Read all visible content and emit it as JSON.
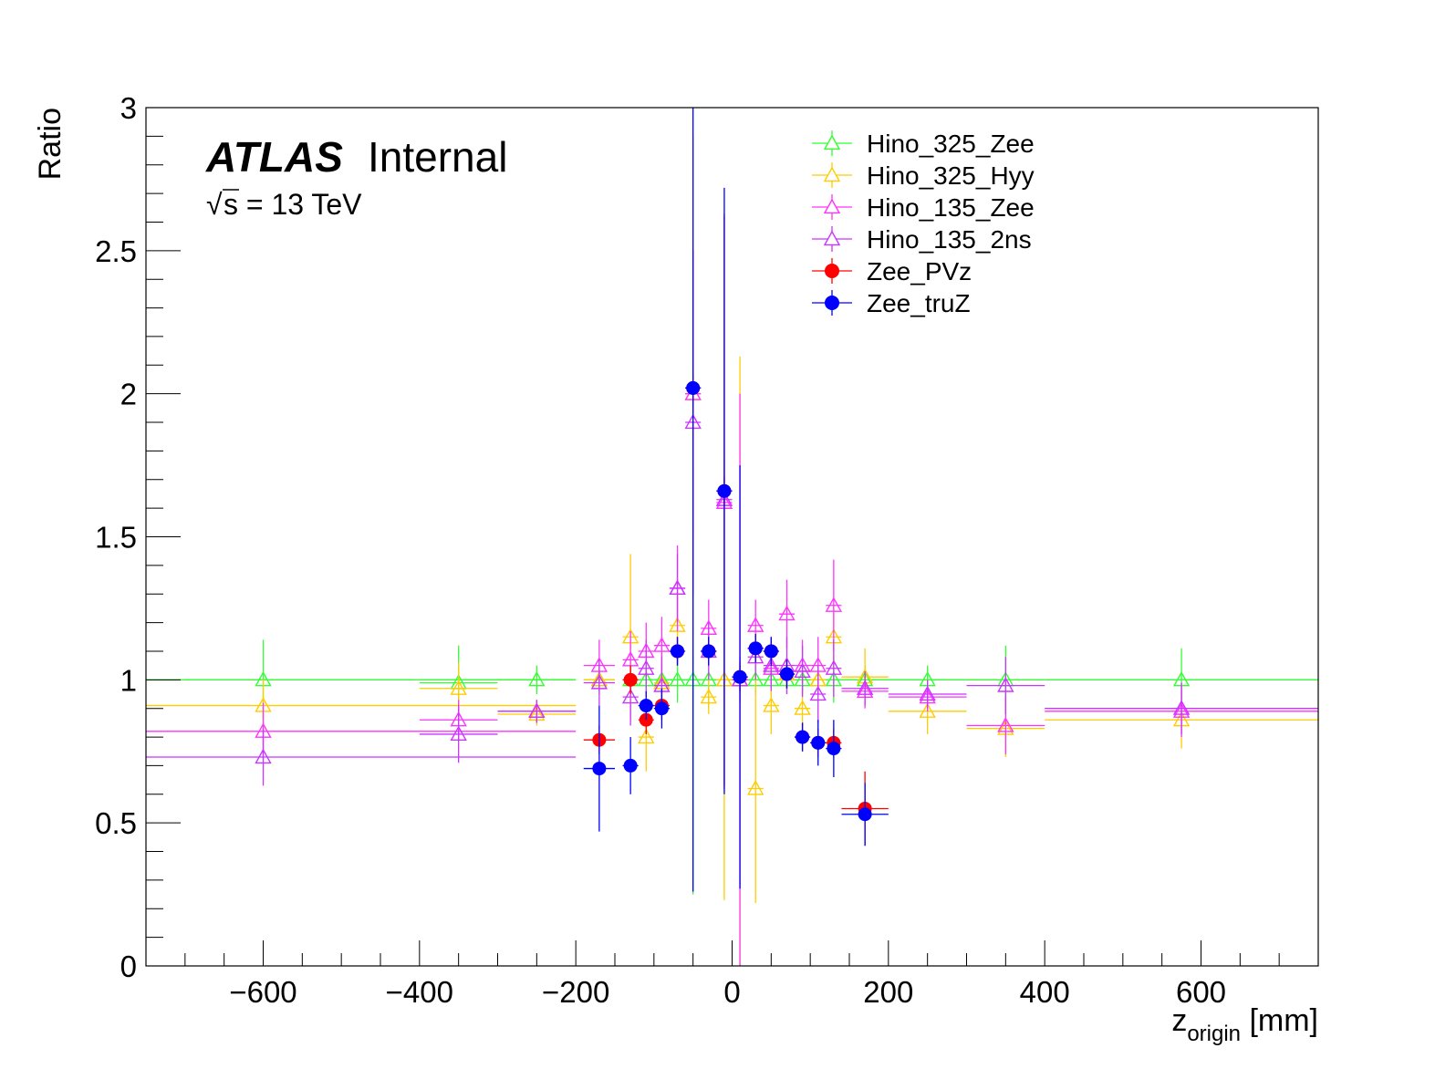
{
  "chart_data": {
    "type": "scatter",
    "title": "",
    "xlabel_main": "z",
    "xlabel_sub": "origin",
    "xlabel_unit": " [mm]",
    "ylabel": "Ratio",
    "xlim": [
      -750,
      750
    ],
    "ylim": [
      0,
      3
    ],
    "x_ticks": [
      -600,
      -400,
      -200,
      0,
      200,
      400,
      600
    ],
    "x_tick_labels": [
      "−600",
      "−400",
      "−200",
      "0",
      "200",
      "400",
      "600"
    ],
    "y_ticks": [
      0,
      0.5,
      1,
      1.5,
      2,
      2.5,
      3
    ],
    "y_tick_labels": [
      "0",
      "0.5",
      "1",
      "1.5",
      "2",
      "2.5",
      "3"
    ],
    "legend_position": "top-right",
    "grid": false,
    "series": [
      {
        "name": "Hino_325_Zee",
        "color": "#33ff33",
        "marker": "open-triangle",
        "points": [
          {
            "x": -600,
            "y": 1.0,
            "xerr": 400,
            "yerr": 0.14
          },
          {
            "x": -350,
            "y": 0.99,
            "xerr": 50,
            "yerr": 0.13
          },
          {
            "x": -250,
            "y": 1.0,
            "xerr": 50,
            "yerr": 0.05
          },
          {
            "x": -170,
            "y": 1.0,
            "xerr": 20,
            "yerr": 0.05
          },
          {
            "x": -130,
            "y": 1.0,
            "xerr": 10,
            "yerr": 0.05
          },
          {
            "x": -110,
            "y": 1.0,
            "xerr": 10,
            "yerr": 0.05
          },
          {
            "x": -90,
            "y": 1.0,
            "xerr": 10,
            "yerr": 0.05
          },
          {
            "x": -70,
            "y": 1.0,
            "xerr": 10,
            "yerr": 0.08
          },
          {
            "x": -50,
            "y": 1.0,
            "xerr": 10,
            "yerr": 0.75
          },
          {
            "x": -30,
            "y": 1.0,
            "xerr": 10,
            "yerr": 0.1
          },
          {
            "x": -10,
            "y": 1.0,
            "xerr": 10,
            "yerr": 0.05
          },
          {
            "x": 10,
            "y": 1.0,
            "xerr": 10,
            "yerr": 0.05
          },
          {
            "x": 30,
            "y": 1.0,
            "xerr": 10,
            "yerr": 0.05
          },
          {
            "x": 50,
            "y": 1.0,
            "xerr": 10,
            "yerr": 0.05
          },
          {
            "x": 70,
            "y": 1.0,
            "xerr": 10,
            "yerr": 0.05
          },
          {
            "x": 90,
            "y": 1.0,
            "xerr": 10,
            "yerr": 0.05
          },
          {
            "x": 110,
            "y": 1.0,
            "xerr": 10,
            "yerr": 0.05
          },
          {
            "x": 130,
            "y": 1.0,
            "xerr": 10,
            "yerr": 0.08
          },
          {
            "x": 170,
            "y": 1.0,
            "xerr": 30,
            "yerr": 0.05
          },
          {
            "x": 250,
            "y": 1.0,
            "xerr": 50,
            "yerr": 0.05
          },
          {
            "x": 350,
            "y": 1.0,
            "xerr": 50,
            "yerr": 0.12
          },
          {
            "x": 575,
            "y": 1.0,
            "xerr": 175,
            "yerr": 0.11
          }
        ]
      },
      {
        "name": "Hino_325_Hyy",
        "color": "#ffcc00",
        "marker": "open-triangle",
        "points": [
          {
            "x": -600,
            "y": 0.91,
            "xerr": 400,
            "yerr": 0.09
          },
          {
            "x": -350,
            "y": 0.97,
            "xerr": 50,
            "yerr": 0.09
          },
          {
            "x": -250,
            "y": 0.88,
            "xerr": 50,
            "yerr": 0.04
          },
          {
            "x": -170,
            "y": 1.0,
            "xerr": 20,
            "yerr": 0.05
          },
          {
            "x": -130,
            "y": 1.15,
            "xerr": 10,
            "yerr": 0.29
          },
          {
            "x": -110,
            "y": 0.8,
            "xerr": 10,
            "yerr": 0.12
          },
          {
            "x": -90,
            "y": 0.99,
            "xerr": 10,
            "yerr": 0.1
          },
          {
            "x": -70,
            "y": 1.19,
            "xerr": 10,
            "yerr": 0.1
          },
          {
            "x": -50,
            "y": 2.0,
            "xerr": 10,
            "yerr": 0.9
          },
          {
            "x": -30,
            "y": 0.94,
            "xerr": 10,
            "yerr": 0.06
          },
          {
            "x": -10,
            "y": 1.0,
            "xerr": 10,
            "yerr": 0.77
          },
          {
            "x": 10,
            "y": 1.0,
            "xerr": 10,
            "yerr": 1.13
          },
          {
            "x": 30,
            "y": 0.62,
            "xerr": 10,
            "yerr": 0.4
          },
          {
            "x": 50,
            "y": 0.91,
            "xerr": 10,
            "yerr": 0.1
          },
          {
            "x": 70,
            "y": 1.02,
            "xerr": 10,
            "yerr": 0.05
          },
          {
            "x": 90,
            "y": 0.9,
            "xerr": 10,
            "yerr": 0.06
          },
          {
            "x": 110,
            "y": 1.0,
            "xerr": 10,
            "yerr": 0.05
          },
          {
            "x": 130,
            "y": 1.15,
            "xerr": 10,
            "yerr": 0.11
          },
          {
            "x": 170,
            "y": 1.01,
            "xerr": 30,
            "yerr": 0.1
          },
          {
            "x": 250,
            "y": 0.89,
            "xerr": 50,
            "yerr": 0.08
          },
          {
            "x": 350,
            "y": 0.83,
            "xerr": 50,
            "yerr": 0.1
          },
          {
            "x": 575,
            "y": 0.86,
            "xerr": 175,
            "yerr": 0.1
          }
        ]
      },
      {
        "name": "Hino_135_Zee",
        "color": "#ff33ff",
        "marker": "open-triangle",
        "points": [
          {
            "x": -600,
            "y": 0.82,
            "xerr": 400,
            "yerr": 0.1
          },
          {
            "x": -350,
            "y": 0.86,
            "xerr": 50,
            "yerr": 0.07
          },
          {
            "x": -250,
            "y": 0.89,
            "xerr": 50,
            "yerr": 0.04
          },
          {
            "x": -170,
            "y": 1.05,
            "xerr": 20,
            "yerr": 0.09
          },
          {
            "x": -130,
            "y": 1.07,
            "xerr": 10,
            "yerr": 0.1
          },
          {
            "x": -110,
            "y": 1.1,
            "xerr": 10,
            "yerr": 0.1
          },
          {
            "x": -90,
            "y": 1.12,
            "xerr": 10,
            "yerr": 0.1
          },
          {
            "x": -70,
            "y": 1.32,
            "xerr": 10,
            "yerr": 0.15
          },
          {
            "x": -50,
            "y": 2.0,
            "xerr": 10,
            "yerr": 0.5
          },
          {
            "x": -30,
            "y": 1.18,
            "xerr": 10,
            "yerr": 0.1
          },
          {
            "x": -10,
            "y": 1.62,
            "xerr": 10,
            "yerr": 1.0
          },
          {
            "x": 10,
            "y": 1.0,
            "xerr": 10,
            "yerr": 1.0
          },
          {
            "x": 30,
            "y": 1.19,
            "xerr": 10,
            "yerr": 0.09
          },
          {
            "x": 50,
            "y": 1.04,
            "xerr": 10,
            "yerr": 0.08
          },
          {
            "x": 70,
            "y": 1.23,
            "xerr": 10,
            "yerr": 0.12
          },
          {
            "x": 90,
            "y": 1.05,
            "xerr": 10,
            "yerr": 0.09
          },
          {
            "x": 110,
            "y": 1.05,
            "xerr": 10,
            "yerr": 0.1
          },
          {
            "x": 130,
            "y": 1.26,
            "xerr": 10,
            "yerr": 0.16
          },
          {
            "x": 170,
            "y": 0.96,
            "xerr": 30,
            "yerr": 0.06
          },
          {
            "x": 250,
            "y": 0.94,
            "xerr": 50,
            "yerr": 0.05
          },
          {
            "x": 350,
            "y": 0.84,
            "xerr": 50,
            "yerr": 0.1
          },
          {
            "x": 575,
            "y": 0.89,
            "xerr": 175,
            "yerr": 0.09
          }
        ]
      },
      {
        "name": "Hino_135_2ns",
        "color": "#cc33ff",
        "marker": "open-triangle",
        "points": [
          {
            "x": -600,
            "y": 0.73,
            "xerr": 400,
            "yerr": 0.1
          },
          {
            "x": -350,
            "y": 0.81,
            "xerr": 50,
            "yerr": 0.1
          },
          {
            "x": -250,
            "y": 0.89,
            "xerr": 50,
            "yerr": 0.04
          },
          {
            "x": -170,
            "y": 0.99,
            "xerr": 20,
            "yerr": 0.08
          },
          {
            "x": -130,
            "y": 0.94,
            "xerr": 10,
            "yerr": 0.1
          },
          {
            "x": -110,
            "y": 1.04,
            "xerr": 10,
            "yerr": 0.1
          },
          {
            "x": -90,
            "y": 0.98,
            "xerr": 10,
            "yerr": 0.1
          },
          {
            "x": -70,
            "y": 1.32,
            "xerr": 10,
            "yerr": 0.12
          },
          {
            "x": -50,
            "y": 1.9,
            "xerr": 10,
            "yerr": 0.6
          },
          {
            "x": -30,
            "y": 1.1,
            "xerr": 10,
            "yerr": 0.1
          },
          {
            "x": -10,
            "y": 1.63,
            "xerr": 10,
            "yerr": 1.0
          },
          {
            "x": 10,
            "y": 1.0,
            "xerr": 10,
            "yerr": 0.08
          },
          {
            "x": 30,
            "y": 1.08,
            "xerr": 10,
            "yerr": 0.08
          },
          {
            "x": 50,
            "y": 1.05,
            "xerr": 10,
            "yerr": 0.08
          },
          {
            "x": 70,
            "y": 1.05,
            "xerr": 10,
            "yerr": 0.1
          },
          {
            "x": 90,
            "y": 1.03,
            "xerr": 10,
            "yerr": 0.09
          },
          {
            "x": 110,
            "y": 0.95,
            "xerr": 10,
            "yerr": 0.1
          },
          {
            "x": 130,
            "y": 1.04,
            "xerr": 10,
            "yerr": 0.1
          },
          {
            "x": 170,
            "y": 0.97,
            "xerr": 30,
            "yerr": 0.06
          },
          {
            "x": 250,
            "y": 0.95,
            "xerr": 50,
            "yerr": 0.05
          },
          {
            "x": 350,
            "y": 0.98,
            "xerr": 50,
            "yerr": 0.1
          },
          {
            "x": 575,
            "y": 0.9,
            "xerr": 175,
            "yerr": 0.09
          }
        ]
      },
      {
        "name": "Zee_PVz",
        "color": "#ff0000",
        "marker": "filled-circle",
        "points": [
          {
            "x": -170,
            "y": 0.79,
            "xerr": 20,
            "yerr": 0.05
          },
          {
            "x": -130,
            "y": 1.0,
            "xerr": 10,
            "yerr": 0.05
          },
          {
            "x": -110,
            "y": 0.86,
            "xerr": 10,
            "yerr": 0.05
          },
          {
            "x": -90,
            "y": 0.91,
            "xerr": 10,
            "yerr": 0.05
          },
          {
            "x": -70,
            "y": 1.1,
            "xerr": 10,
            "yerr": 0.05
          },
          {
            "x": -50,
            "y": 2.02,
            "xerr": 10,
            "yerr": 0.05
          },
          {
            "x": -30,
            "y": 1.1,
            "xerr": 10,
            "yerr": 0.05
          },
          {
            "x": -10,
            "y": 1.66,
            "xerr": 10,
            "yerr": 0.05
          },
          {
            "x": 10,
            "y": 1.01,
            "xerr": 10,
            "yerr": 0.05
          },
          {
            "x": 30,
            "y": 1.11,
            "xerr": 10,
            "yerr": 0.05
          },
          {
            "x": 50,
            "y": 1.1,
            "xerr": 10,
            "yerr": 0.05
          },
          {
            "x": 70,
            "y": 1.02,
            "xerr": 10,
            "yerr": 0.05
          },
          {
            "x": 90,
            "y": 0.8,
            "xerr": 10,
            "yerr": 0.05
          },
          {
            "x": 110,
            "y": 0.78,
            "xerr": 10,
            "yerr": 0.05
          },
          {
            "x": 130,
            "y": 0.78,
            "xerr": 10,
            "yerr": 0.05
          },
          {
            "x": 170,
            "y": 0.55,
            "xerr": 30,
            "yerr": 0.13
          }
        ]
      },
      {
        "name": "Zee_truZ",
        "color": "#0000ff",
        "marker": "filled-circle",
        "points": [
          {
            "x": -170,
            "y": 0.69,
            "xerr": 20,
            "yerr": 0.22
          },
          {
            "x": -130,
            "y": 0.7,
            "xerr": 10,
            "yerr": 0.1
          },
          {
            "x": -110,
            "y": 0.91,
            "xerr": 10,
            "yerr": 0.05
          },
          {
            "x": -90,
            "y": 0.9,
            "xerr": 10,
            "yerr": 0.07
          },
          {
            "x": -70,
            "y": 1.1,
            "xerr": 10,
            "yerr": 0.05
          },
          {
            "x": -50,
            "y": 2.02,
            "xerr": 10,
            "yerr": 1.76
          },
          {
            "x": -30,
            "y": 1.1,
            "xerr": 10,
            "yerr": 0.05
          },
          {
            "x": -10,
            "y": 1.66,
            "xerr": 10,
            "yerr": 1.06
          },
          {
            "x": 10,
            "y": 1.01,
            "xerr": 10,
            "yerr": 0.74
          },
          {
            "x": 30,
            "y": 1.11,
            "xerr": 10,
            "yerr": 0.05
          },
          {
            "x": 50,
            "y": 1.1,
            "xerr": 10,
            "yerr": 0.05
          },
          {
            "x": 70,
            "y": 1.02,
            "xerr": 10,
            "yerr": 0.05
          },
          {
            "x": 90,
            "y": 0.8,
            "xerr": 10,
            "yerr": 0.05
          },
          {
            "x": 110,
            "y": 0.78,
            "xerr": 10,
            "yerr": 0.08
          },
          {
            "x": 130,
            "y": 0.76,
            "xerr": 10,
            "yerr": 0.1
          },
          {
            "x": 170,
            "y": 0.53,
            "xerr": 30,
            "yerr": 0.11
          }
        ]
      }
    ]
  },
  "labels": {
    "atlas": "ATLAS",
    "internal": "Internal",
    "sqrt_sign": "√",
    "energy": "s = 13 TeV"
  }
}
